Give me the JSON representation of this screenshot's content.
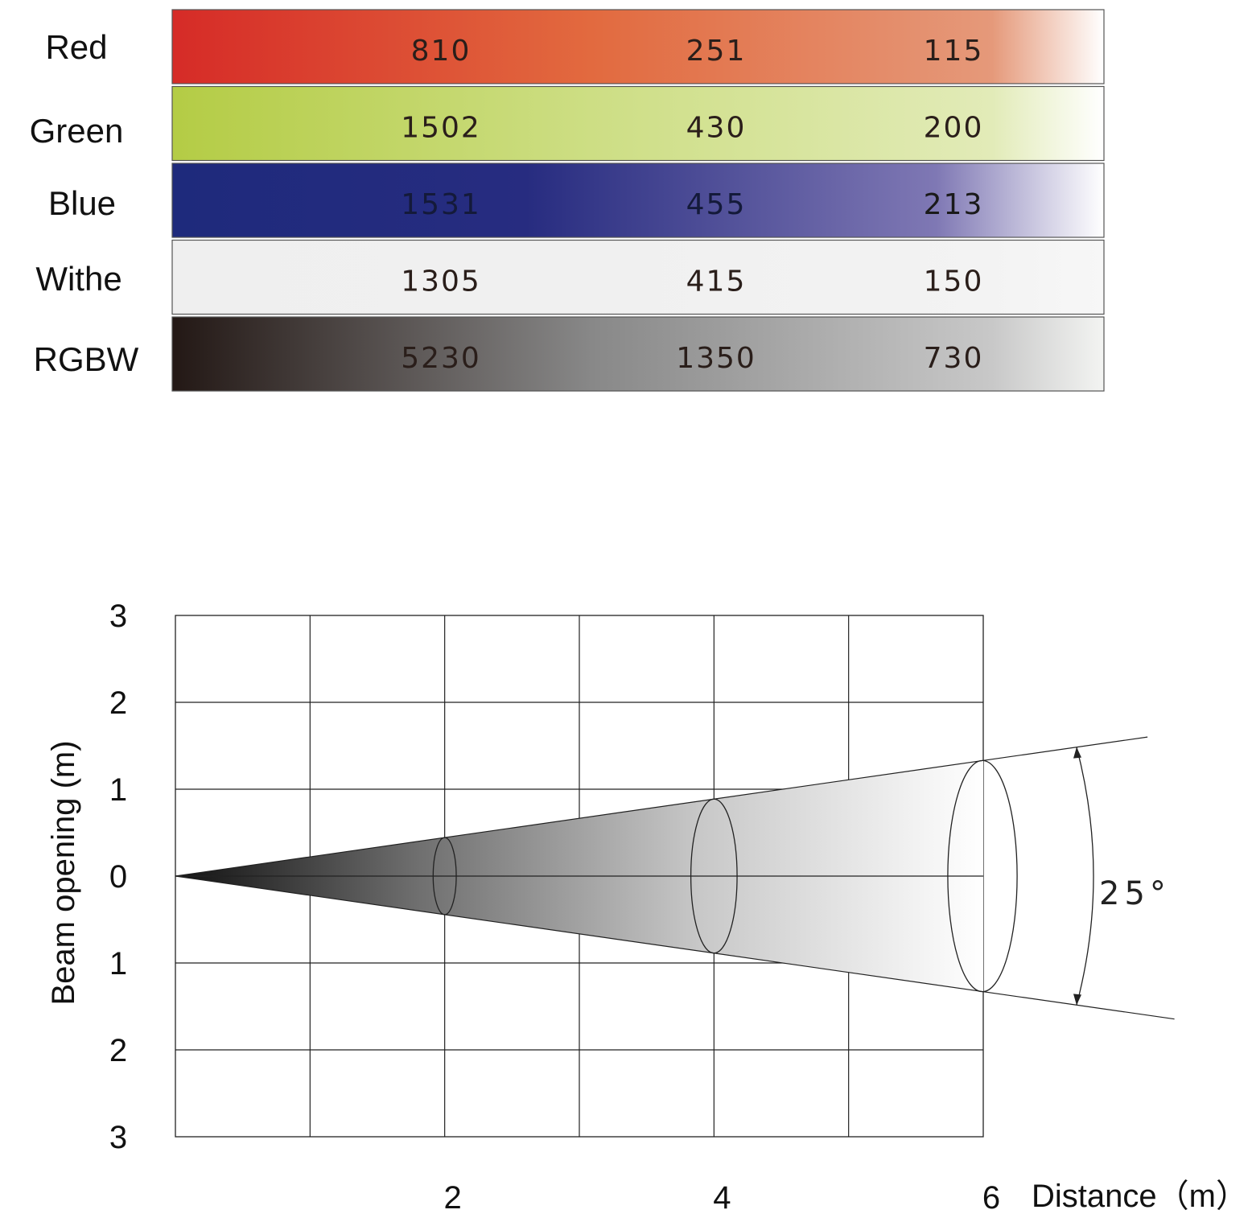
{
  "chart_data": [
    {
      "type": "table",
      "rows": [
        {
          "label": "Red",
          "values": [
            "810",
            "251",
            "115"
          ],
          "gradient": [
            "#d62b27",
            "#e26a3f",
            "#e5997a",
            "#ffffff"
          ]
        },
        {
          "label": "Green",
          "values": [
            "1502",
            "430",
            "200"
          ],
          "gradient": [
            "#b4cc45",
            "#cdde84",
            "#e2ebb8",
            "#ffffff"
          ]
        },
        {
          "label": "Blue",
          "values": [
            "1531",
            "455",
            "213"
          ],
          "gradient": [
            "#1e2a7c",
            "#272c80",
            "#7f78b4",
            "#ffffff"
          ]
        },
        {
          "label": "Withe",
          "values": [
            "1305",
            "415",
            "150"
          ],
          "gradient": [
            "#efefef",
            "#f0f0f0",
            "#f3f3f3",
            "#f7f7f7"
          ]
        },
        {
          "label": "RGBW",
          "values": [
            "5230",
            "1350",
            "730"
          ],
          "gradient": [
            "#231815",
            "#888888",
            "#c8c8c8",
            "#f3f4f2"
          ]
        }
      ]
    },
    {
      "type": "area",
      "beam_angle_label": "25°",
      "beam_angle_deg": 25,
      "xlabel": "Distance（m）",
      "ylabel": "Beam opening (m)",
      "x_ticks": [
        "2",
        "4",
        "6"
      ],
      "y_ticks_top_to_bottom": [
        "3",
        "2",
        "1",
        "0",
        "1",
        "2",
        "3"
      ],
      "xlim": [
        0,
        6
      ],
      "ylim": [
        -3,
        3
      ],
      "grid": true,
      "ellipse_distances": [
        2,
        4,
        6
      ]
    }
  ]
}
